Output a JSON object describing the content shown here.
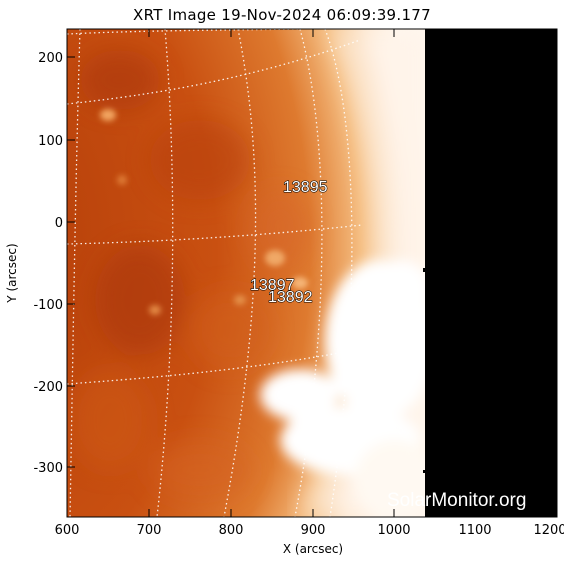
{
  "title": "XRT Image 19-Nov-2024 06:09:39.177",
  "x_axis": {
    "label": "X (arcsec)",
    "ticks": [
      "600",
      "700",
      "800",
      "900",
      "1000",
      "1100",
      "1200"
    ]
  },
  "y_axis": {
    "label": "Y (arcsec)",
    "ticks": [
      "200",
      "100",
      "0",
      "-100",
      "-200",
      "-300"
    ]
  },
  "active_regions": [
    {
      "number": "13895"
    },
    {
      "number": "13897"
    },
    {
      "number": "13892"
    }
  ],
  "watermark": "SolarMonitor.org",
  "colors": {
    "disk_base": "#c24812",
    "limb_glow": "#ffffff",
    "off_limb": "#000000",
    "grid": "#ffffff"
  }
}
